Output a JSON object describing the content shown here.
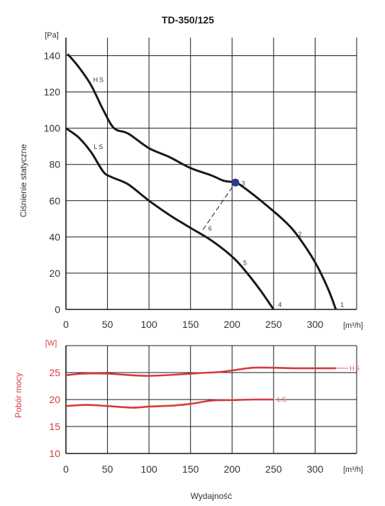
{
  "chart_data": [
    {
      "type": "line",
      "title": "TD-350/125",
      "ylabel": "Ciśnienie statyczne",
      "yunit": "[Pa]",
      "xunit": "[m³/h]",
      "xlim": [
        0,
        350
      ],
      "ylim": [
        0,
        150
      ],
      "xticks": [
        "0",
        "50",
        "100",
        "150",
        "200",
        "250",
        "300"
      ],
      "yticks": [
        "0",
        "20",
        "40",
        "60",
        "80",
        "100",
        "120",
        "140"
      ],
      "grid": true,
      "colors": {
        "curve": "#1a1a1a",
        "point": "#2b3a8c",
        "grid": "#1a1a1a",
        "dashed": "#1a1a1a"
      },
      "series": [
        {
          "name": "HS",
          "label_at": [
            28,
            127
          ],
          "points": [
            [
              2,
              141
            ],
            [
              15,
              134
            ],
            [
              30,
              124
            ],
            [
              45,
              110
            ],
            [
              58,
              100
            ],
            [
              75,
              97
            ],
            [
              100,
              89
            ],
            [
              125,
              84
            ],
            [
              150,
              78
            ],
            [
              175,
              74
            ],
            [
              190,
              71
            ],
            [
              204,
              70
            ],
            [
              215,
              67
            ],
            [
              240,
              58
            ],
            [
              265,
              48
            ],
            [
              280,
              40
            ],
            [
              300,
              26
            ],
            [
              315,
              12
            ],
            [
              325,
              0
            ]
          ]
        },
        {
          "name": "LS",
          "label_at": [
            28,
            90
          ],
          "points": [
            [
              0,
              100
            ],
            [
              15,
              95
            ],
            [
              30,
              87
            ],
            [
              45,
              76
            ],
            [
              55,
              73
            ],
            [
              75,
              69
            ],
            [
              100,
              60
            ],
            [
              125,
              52
            ],
            [
              150,
              45
            ],
            [
              172,
              39
            ],
            [
              190,
              33
            ],
            [
              205,
              27
            ],
            [
              220,
              19
            ],
            [
              235,
              10
            ],
            [
              250,
              0
            ]
          ]
        }
      ],
      "marked_point": {
        "label": "3",
        "x": 204,
        "y": 70
      },
      "point_labels": [
        {
          "label": "1",
          "x": 327,
          "y": 3
        },
        {
          "label": "2",
          "x": 276,
          "y": 42
        },
        {
          "label": "3",
          "x": 208,
          "y": 70
        },
        {
          "label": "4",
          "x": 252,
          "y": 3
        },
        {
          "label": "5",
          "x": 210,
          "y": 26
        },
        {
          "label": "6",
          "x": 168,
          "y": 45
        }
      ],
      "dashed_line": [
        [
          165,
          44
        ],
        [
          204,
          70
        ]
      ]
    },
    {
      "type": "line",
      "ylabel": "Pobór mocy",
      "yunit": "[W]",
      "xunit": "[m³/h]",
      "xlabel": "Wydajność",
      "xlim": [
        0,
        350
      ],
      "ylim": [
        10,
        30
      ],
      "xticks": [
        "0",
        "50",
        "100",
        "150",
        "200",
        "250",
        "300"
      ],
      "yticks": [
        "10",
        "15",
        "20",
        "25"
      ],
      "grid": true,
      "colors": {
        "curve": "#d93a3a",
        "label": "#e06060",
        "axis_text": "#d93a3a",
        "grid": "#1a1a1a"
      },
      "series": [
        {
          "name": "HS",
          "end_x": 340,
          "points": [
            [
              0,
              24.5
            ],
            [
              20,
              24.8
            ],
            [
              50,
              24.8
            ],
            [
              80,
              24.5
            ],
            [
              100,
              24.4
            ],
            [
              130,
              24.6
            ],
            [
              160,
              24.9
            ],
            [
              185,
              25.1
            ],
            [
              205,
              25.5
            ],
            [
              225,
              25.9
            ],
            [
              250,
              25.9
            ],
            [
              275,
              25.8
            ],
            [
              300,
              25.8
            ],
            [
              325,
              25.8
            ]
          ]
        },
        {
          "name": "LS",
          "end_x": 253,
          "points": [
            [
              0,
              18.8
            ],
            [
              25,
              19.0
            ],
            [
              50,
              18.8
            ],
            [
              80,
              18.5
            ],
            [
              100,
              18.7
            ],
            [
              130,
              18.9
            ],
            [
              150,
              19.2
            ],
            [
              175,
              19.8
            ],
            [
              200,
              19.9
            ],
            [
              225,
              20.0
            ],
            [
              250,
              20.0
            ]
          ]
        }
      ]
    }
  ]
}
